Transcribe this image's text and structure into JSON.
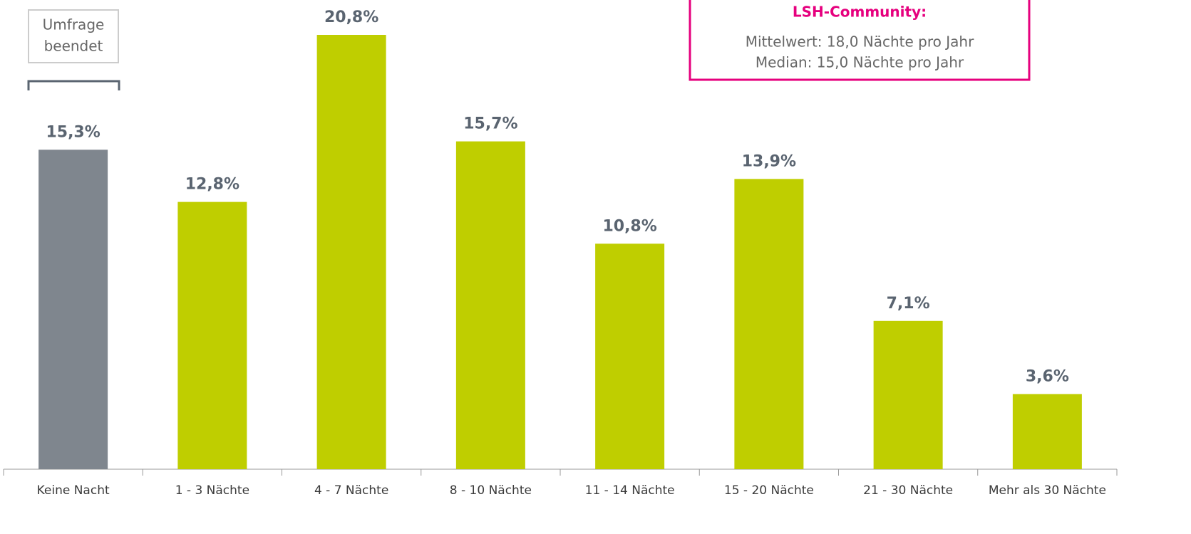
{
  "chart_data": {
    "type": "bar",
    "categories": [
      "Keine Nacht",
      "1 - 3 Nächte",
      "4 - 7 Nächte",
      "8 - 10 Nächte",
      "11 - 14 Nächte",
      "15 - 20 Nächte",
      "21 - 30 Nächte",
      "Mehr als 30 Nächte"
    ],
    "values": [
      15.3,
      12.8,
      20.8,
      15.7,
      10.8,
      13.9,
      7.1,
      3.6
    ],
    "value_labels": [
      "15,3%",
      "12,8%",
      "20,8%",
      "15,7%",
      "10,8%",
      "13,9%",
      "7,1%",
      "3,6%"
    ],
    "colors": [
      "#7f868e",
      "#bfce00",
      "#bfce00",
      "#bfce00",
      "#bfce00",
      "#bfce00",
      "#bfce00",
      "#bfce00"
    ],
    "note": [
      "Umfrage",
      "beendet"
    ],
    "info_box": {
      "title": "LSH-Community:",
      "lines": [
        "Mittelwert: 18,0 Nächte pro Jahr",
        "Median: 15,0 Nächte pro Jahr"
      ]
    }
  }
}
